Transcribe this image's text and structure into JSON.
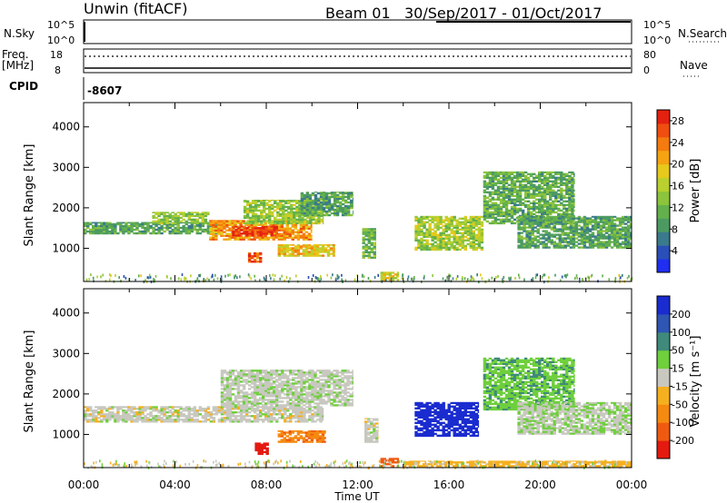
{
  "header": {
    "title": "Unwin (fitACF)",
    "beam": "Beam 01",
    "dates": "30/Sep/2017 - 01/Oct/2017"
  },
  "status_panels": {
    "nsky_label": "N.Sky",
    "nsky_ticks": [
      "10^5",
      "10^0"
    ],
    "nsearch_label": "N.Search",
    "nsearch_ticks": [
      "10^5",
      "10^0"
    ],
    "freq_label_line1": "Freq.",
    "freq_label_line2": "[MHz]",
    "freq_ticks": [
      18,
      8
    ],
    "nave_label": "Nave",
    "nave_ticks": [
      80,
      0
    ],
    "cpid_label": "CPID",
    "cpid_value": "-8607"
  },
  "chart_data": [
    {
      "type": "heatmap",
      "name": "power",
      "ylabel": "Slant Range [km]",
      "yticks": [
        1000,
        2000,
        3000,
        4000
      ],
      "ylim": [
        180,
        4600
      ],
      "xlim_hours": [
        0,
        24
      ],
      "colorbar": {
        "label": "Power [dB]",
        "ticks": [
          4,
          8,
          12,
          16,
          20,
          24,
          28
        ],
        "range": [
          0,
          30
        ],
        "colors": [
          "#1f2ef0",
          "#2a4fb8",
          "#3a7a8c",
          "#4c9a62",
          "#63b04c",
          "#8cc43c",
          "#b9d02e",
          "#e6c91c",
          "#f5a312",
          "#f47b0f",
          "#ef4e10",
          "#e42010"
        ]
      },
      "regions": [
        {
          "t0": 0.0,
          "t1": 6.0,
          "r0": 1350,
          "r1": 1650,
          "level": 10,
          "desc": "west-band"
        },
        {
          "t0": 3.0,
          "t1": 5.5,
          "r0": 1600,
          "r1": 1900,
          "level": 14
        },
        {
          "t0": 5.5,
          "t1": 10.0,
          "r0": 1200,
          "r1": 1700,
          "level": 22
        },
        {
          "t0": 6.5,
          "t1": 8.5,
          "r0": 1300,
          "r1": 1550,
          "level": 27
        },
        {
          "t0": 7.0,
          "t1": 10.5,
          "r0": 1600,
          "r1": 2200,
          "level": 14
        },
        {
          "t0": 8.5,
          "t1": 11.0,
          "r0": 800,
          "r1": 1100,
          "level": 19
        },
        {
          "t0": 9.5,
          "t1": 11.8,
          "r0": 1800,
          "r1": 2400,
          "level": 10
        },
        {
          "t0": 7.2,
          "t1": 7.8,
          "r0": 650,
          "r1": 900,
          "level": 26
        },
        {
          "t0": 12.2,
          "t1": 12.8,
          "r0": 750,
          "r1": 1500,
          "level": 12
        },
        {
          "t0": 13.0,
          "t1": 13.8,
          "r0": 200,
          "r1": 420,
          "level": 18
        },
        {
          "t0": 14.5,
          "t1": 17.5,
          "r0": 950,
          "r1": 1800,
          "level": 15
        },
        {
          "t0": 17.5,
          "t1": 21.5,
          "r0": 1600,
          "r1": 2900,
          "level": 11
        },
        {
          "t0": 19.0,
          "t1": 24.0,
          "r0": 1000,
          "r1": 1800,
          "level": 10
        }
      ]
    },
    {
      "type": "heatmap",
      "name": "velocity",
      "xlabel": "Time UT",
      "ylabel": "Slant Range [km]",
      "xticks": [
        "00:00",
        "04:00",
        "08:00",
        "12:00",
        "16:00",
        "20:00",
        "00:00"
      ],
      "yticks": [
        1000,
        2000,
        3000,
        4000
      ],
      "ylim": [
        180,
        4600
      ],
      "xlim_hours": [
        0,
        24
      ],
      "colorbar": {
        "label": "Velocity [m s⁻¹]",
        "ticks": [
          200,
          100,
          50,
          15,
          -15,
          -50,
          -100,
          -200
        ],
        "colors": [
          "#1a2ccf",
          "#2e56b2",
          "#3f8a7a",
          "#6fcf3c",
          "#c8c8c0",
          "#f5b020",
          "#f58a10",
          "#f05a10",
          "#e41a10"
        ]
      },
      "regions": [
        {
          "t0": 0.0,
          "t1": 10.5,
          "r0": 1300,
          "r1": 1700,
          "vel": 0
        },
        {
          "t0": 6.0,
          "t1": 11.8,
          "r0": 1700,
          "r1": 2600,
          "vel": 5
        },
        {
          "t0": 8.5,
          "t1": 10.6,
          "r0": 800,
          "r1": 1100,
          "vel": -90
        },
        {
          "t0": 7.5,
          "t1": 8.1,
          "r0": 500,
          "r1": 800,
          "vel": -220
        },
        {
          "t0": 14.5,
          "t1": 17.3,
          "r0": 950,
          "r1": 1800,
          "vel": 220
        },
        {
          "t0": 12.3,
          "t1": 12.9,
          "r0": 800,
          "r1": 1400,
          "vel": 0
        },
        {
          "t0": 13.0,
          "t1": 13.8,
          "r0": 200,
          "r1": 420,
          "vel": -120
        },
        {
          "t0": 17.5,
          "t1": 21.5,
          "r0": 1600,
          "r1": 2900,
          "vel": 40
        },
        {
          "t0": 19.0,
          "t1": 24.0,
          "r0": 1000,
          "r1": 1800,
          "vel": 10
        },
        {
          "t0": 14.0,
          "t1": 24.0,
          "r0": 200,
          "r1": 350,
          "vel": -30
        }
      ]
    }
  ]
}
